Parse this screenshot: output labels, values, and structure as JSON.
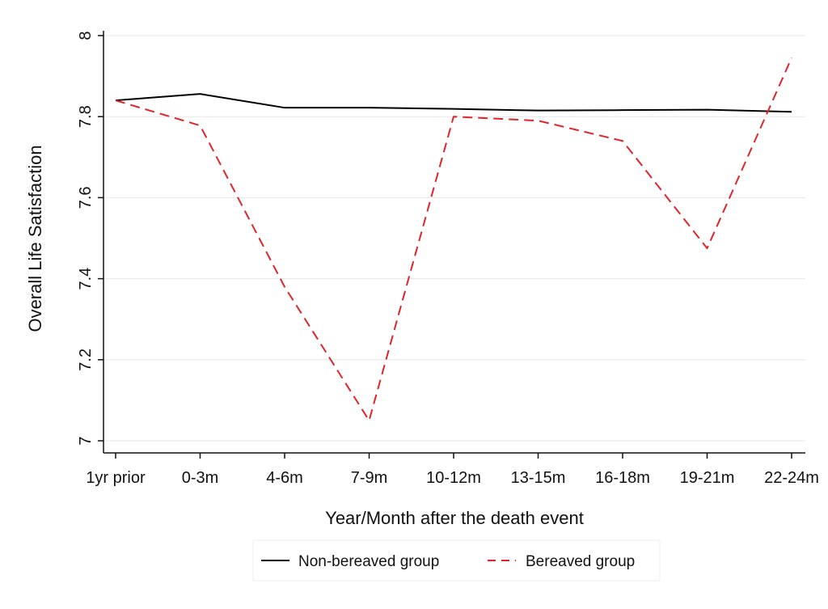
{
  "chart_data": {
    "type": "line",
    "title": "",
    "xlabel": "Year/Month after the death event",
    "ylabel": "Overall Life Satisfaction",
    "categories": [
      "1yr prior",
      "0-3m",
      "4-6m",
      "7-9m",
      "10-12m",
      "13-15m",
      "16-18m",
      "19-21m",
      "22-24m"
    ],
    "yticks": [
      "7",
      "7.2",
      "7.4",
      "7.6",
      "7.8",
      "8"
    ],
    "ylim": [
      7.0,
      8.0
    ],
    "grid": true,
    "legend_position": "bottom",
    "series": [
      {
        "name": "Non-bereaved group",
        "color": "#000000",
        "style": "solid",
        "values": [
          7.84,
          7.856,
          7.822,
          7.822,
          7.819,
          7.815,
          7.816,
          7.817,
          7.812
        ]
      },
      {
        "name": "Bereaved group",
        "color": "#e0242b",
        "style": "dashed",
        "values": [
          7.84,
          7.778,
          7.38,
          7.05,
          7.8,
          7.79,
          7.74,
          7.475,
          7.945
        ]
      }
    ]
  }
}
